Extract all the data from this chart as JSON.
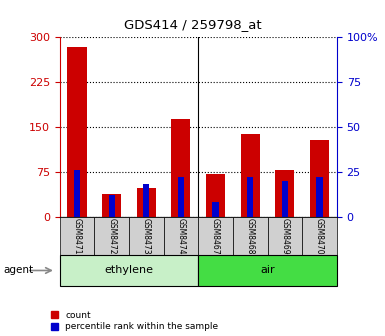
{
  "title": "GDS414 / 259798_at",
  "samples": [
    "GSM8471",
    "GSM8472",
    "GSM8473",
    "GSM8474",
    "GSM8467",
    "GSM8468",
    "GSM8469",
    "GSM8470"
  ],
  "counts": [
    283,
    38,
    48,
    163,
    72,
    138,
    78,
    128
  ],
  "percentiles": [
    26,
    12,
    18,
    22,
    8,
    22,
    20,
    22
  ],
  "groups": [
    {
      "label": "ethylene",
      "indices": [
        0,
        1,
        2,
        3
      ],
      "color": "#c8f0c8"
    },
    {
      "label": "air",
      "indices": [
        4,
        5,
        6,
        7
      ],
      "color": "#44dd44"
    }
  ],
  "group_label": "agent",
  "ylim_left": [
    0,
    300
  ],
  "ylim_right": [
    0,
    100
  ],
  "yticks_left": [
    0,
    75,
    150,
    225,
    300
  ],
  "yticks_right": [
    0,
    25,
    50,
    75,
    100
  ],
  "ytick_labels_right": [
    "0",
    "25",
    "50",
    "75",
    "100%"
  ],
  "bar_color_count": "#cc0000",
  "bar_color_pct": "#0000cc",
  "bar_width": 0.55,
  "pct_bar_width": 0.18,
  "tick_color_left": "#cc0000",
  "tick_color_right": "#0000cc",
  "sample_box_color": "#d0d0d0",
  "fig_width": 3.85,
  "fig_height": 3.36,
  "dpi": 100
}
